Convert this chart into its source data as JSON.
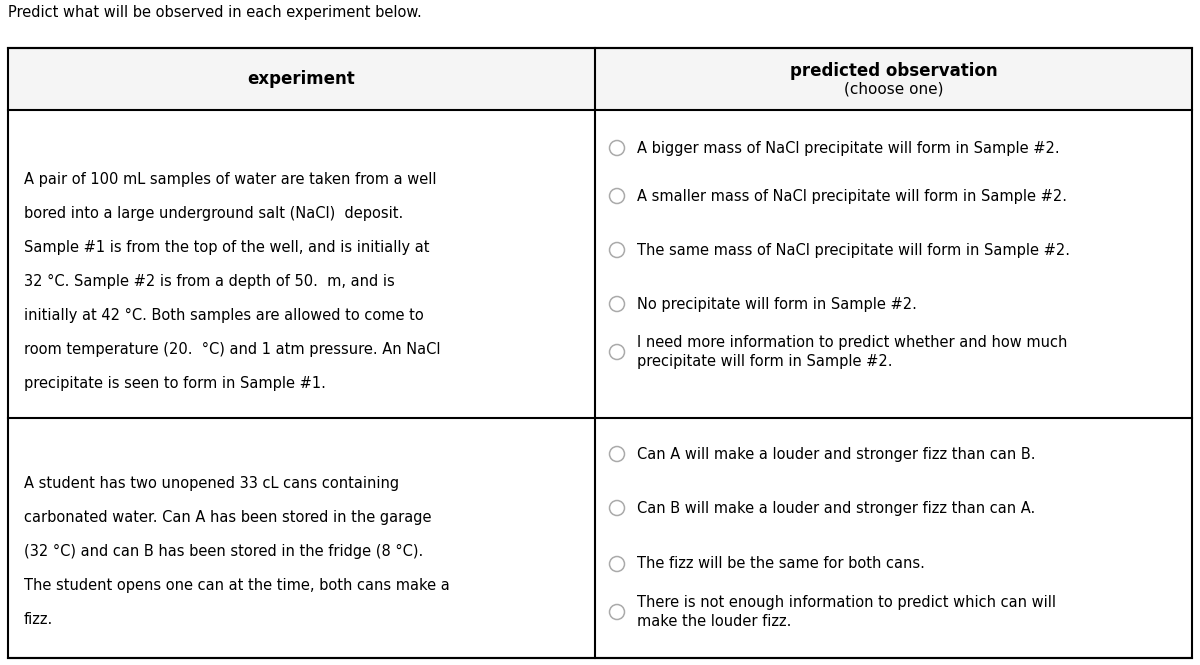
{
  "title": "Predict what will be observed in each experiment below.",
  "col1_header": "experiment",
  "col2_header_line1": "predicted observation",
  "col2_header_line2": "(choose one)",
  "row1_experiment_lines": [
    "",
    "A pair of 100 mL samples of water are taken from a well",
    "bored into a large underground salt (NaCl)  deposit.",
    "Sample #1 is from the top of the well, and is initially at",
    "32 °C. Sample #2 is from a depth of 50.  m, and is",
    "initially at 42 °C. Both samples are allowed to come to",
    "room temperature (20.  °C) and 1 atm pressure. An NaCl",
    "precipitate is seen to form in Sample #1."
  ],
  "row1_options": [
    "A bigger mass of NaCl precipitate will form in Sample #2.",
    "A smaller mass of NaCl precipitate will form in Sample #2.",
    "The same mass of NaCl precipitate will form in Sample #2.",
    "No precipitate will form in Sample #2.",
    "I need more information to predict whether and how much\nprecipitate will form in Sample #2."
  ],
  "row2_experiment_lines": [
    "",
    "A student has two unopened 33 cL cans containing",
    "carbonated water. Can A has been stored in the garage",
    "(32 °C) and can B has been stored in the fridge (8 °C).",
    "The student opens one can at the time, both cans make a",
    "fizz."
  ],
  "row2_options": [
    "Can A will make a louder and stronger fizz than can B.",
    "Can B will make a louder and stronger fizz than can A.",
    "The fizz will be the same for both cans.",
    "There is not enough information to predict which can will\nmake the louder fizz."
  ],
  "bg_color": "#ffffff",
  "border_color": "#000000",
  "text_color": "#000000",
  "circle_color": "#aaaaaa",
  "fig_width": 12.0,
  "fig_height": 6.65,
  "dpi": 100
}
